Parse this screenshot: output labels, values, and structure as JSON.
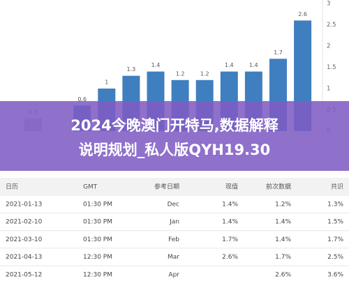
{
  "chart_data": {
    "type": "bar",
    "categories": [
      null,
      null,
      null,
      null,
      null,
      null,
      null,
      null,
      null,
      null,
      null,
      null
    ],
    "values": [
      0.3,
      null,
      0.6,
      1,
      1.3,
      1.4,
      1.2,
      1.2,
      1.4,
      1.4,
      1.7,
      2.6
    ],
    "colors": [
      "#b9c4d2",
      null,
      "#3f7fbf",
      "#3f7fbf",
      "#3f7fbf",
      "#3f7fbf",
      "#3f7fbf",
      "#3f7fbf",
      "#3f7fbf",
      "#3f7fbf",
      "#3f7fbf",
      "#3f7fbf"
    ],
    "ylim": [
      0,
      3
    ],
    "yticks": [
      0,
      0.5,
      1,
      1.5,
      2,
      2.5,
      3
    ]
  },
  "banner": {
    "lines": [
      "2024今晚澳门开特马,数据解释",
      "说明规划_私人版QYH19.30"
    ]
  },
  "table": {
    "header": [
      "日历",
      "GMT",
      "参考日期",
      "现值",
      "前次数据",
      "共识"
    ],
    "rows": [
      [
        "2021-01-13",
        "01:30 PM",
        "Dec",
        "1.4%",
        "1.2%",
        "1.3%"
      ],
      [
        "2021-02-10",
        "01:30 PM",
        "Jan",
        "1.4%",
        "1.4%",
        "1.5%"
      ],
      [
        "2021-03-10",
        "01:30 PM",
        "Feb",
        "1.7%",
        "1.4%",
        "1.7%"
      ],
      [
        "2021-04-13",
        "12:30 PM",
        "Mar",
        "2.6%",
        "1.7%",
        "2.5%"
      ],
      [
        "2021-05-12",
        "12:30 PM",
        "Apr",
        null,
        "2.6%",
        "3.6%"
      ]
    ]
  }
}
